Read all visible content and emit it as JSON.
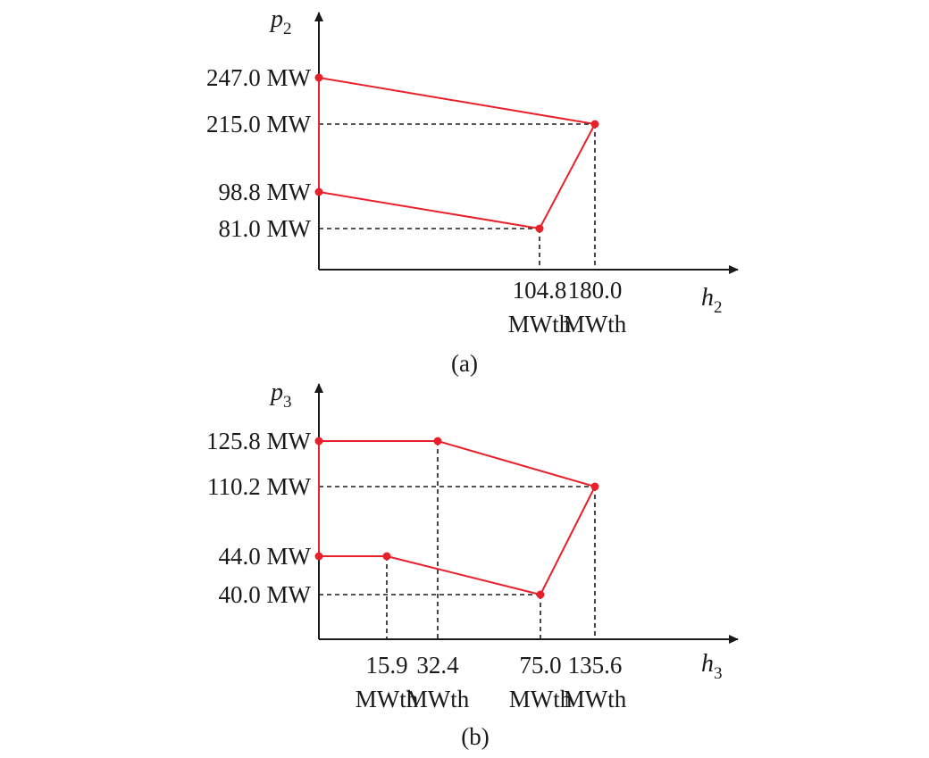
{
  "colors": {
    "region": "#e8202a",
    "axis": "#1a1a1a",
    "guide": "#1a1a1a"
  },
  "chart_data": [
    {
      "type": "line",
      "caption": "(a)",
      "y_axis": {
        "var": "p",
        "sub": "2"
      },
      "x_axis": {
        "var": "h",
        "sub": "2"
      },
      "y_ticks": [
        {
          "value": 247.0,
          "label": "247.0 MW"
        },
        {
          "value": 215.0,
          "label": "215.0 MW"
        },
        {
          "value": 98.8,
          "label": "98.8 MW"
        },
        {
          "value": 81.0,
          "label": "81.0 MW"
        }
      ],
      "x_ticks": [
        {
          "value": 104.8,
          "label": "104.8",
          "unit": "MWth"
        },
        {
          "value": 180.0,
          "label": "180.0",
          "unit": "MWth"
        }
      ],
      "points": [
        {
          "h": 0,
          "p": 247.0
        },
        {
          "h": 180.0,
          "p": 215.0
        },
        {
          "h": 104.8,
          "p": 81.0
        },
        {
          "h": 0,
          "p": 98.8
        }
      ],
      "guides": [
        {
          "h": 180.0,
          "p": 215.0
        },
        {
          "h": 104.8,
          "p": 81.0
        }
      ]
    },
    {
      "type": "line",
      "caption": "(b)",
      "y_axis": {
        "var": "p",
        "sub": "3"
      },
      "x_axis": {
        "var": "h",
        "sub": "3"
      },
      "y_ticks": [
        {
          "value": 125.8,
          "label": "125.8 MW"
        },
        {
          "value": 110.2,
          "label": "110.2 MW"
        },
        {
          "value": 44.0,
          "label": "44.0 MW"
        },
        {
          "value": 40.0,
          "label": "40.0 MW"
        }
      ],
      "x_ticks": [
        {
          "value": 15.9,
          "label": "15.9",
          "unit": "MWth"
        },
        {
          "value": 32.4,
          "label": "32.4",
          "unit": "MWth"
        },
        {
          "value": 75.0,
          "label": "75.0",
          "unit": "MWth"
        },
        {
          "value": 135.6,
          "label": "135.6",
          "unit": "MWth"
        }
      ],
      "points": [
        {
          "h": 0,
          "p": 125.8
        },
        {
          "h": 32.4,
          "p": 125.8
        },
        {
          "h": 135.6,
          "p": 110.2
        },
        {
          "h": 75.0,
          "p": 40.0
        },
        {
          "h": 15.9,
          "p": 44.0
        },
        {
          "h": 0,
          "p": 44.0
        }
      ],
      "guides": [
        {
          "h": 32.4,
          "p": 125.8
        },
        {
          "h": 135.6,
          "p": 110.2
        },
        {
          "h": 75.0,
          "p": 40.0
        },
        {
          "h": 15.9,
          "p": 44.0
        }
      ]
    }
  ]
}
